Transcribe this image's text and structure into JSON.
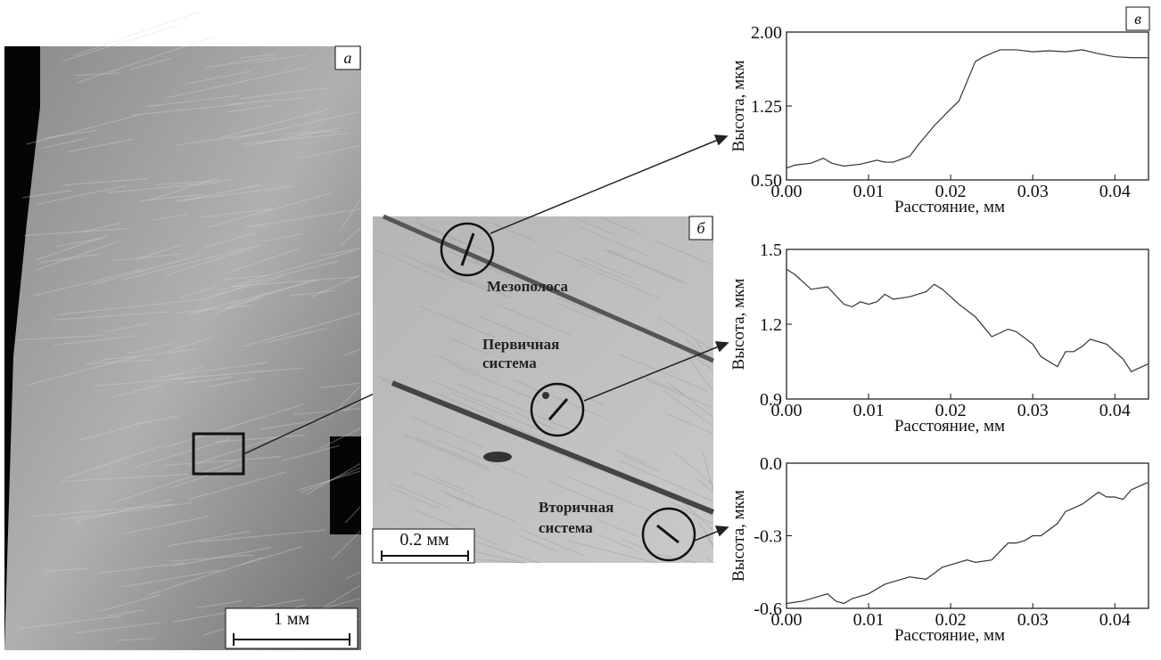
{
  "chart_data": [
    {
      "type": "line",
      "ylabel": "Высота, мкм",
      "xlabel": "Расстояние, мм",
      "xlim": [
        0,
        0.0441
      ],
      "xticks": [
        {
          "value": 0,
          "label": "0.00"
        },
        0.01,
        0.02,
        0.03,
        0.04
      ],
      "ylim": [
        0.5,
        2.0
      ],
      "yticks": [
        {
          "value": 0.5,
          "label": "0.50"
        },
        1.25,
        {
          "value": 2.0,
          "label": "2.00"
        }
      ],
      "x": [
        0,
        0.001,
        0.003,
        0.0045,
        0.0055,
        0.007,
        0.009,
        0.011,
        0.012,
        0.013,
        0.015,
        0.016,
        0.018,
        0.02,
        0.021,
        0.022,
        0.023,
        0.024,
        0.026,
        0.028,
        0.03,
        0.032,
        0.034,
        0.036,
        0.038,
        0.04,
        0.042,
        0.044
      ],
      "series": [
        {
          "color": "#333333",
          "values": [
            0.62,
            0.65,
            0.67,
            0.72,
            0.67,
            0.64,
            0.66,
            0.7,
            0.68,
            0.68,
            0.74,
            0.85,
            1.05,
            1.22,
            1.3,
            1.5,
            1.7,
            1.75,
            1.82,
            1.82,
            1.8,
            1.81,
            1.8,
            1.82,
            1.78,
            1.75,
            1.74,
            1.74
          ]
        }
      ]
    },
    {
      "type": "line",
      "ylabel": "Высота, мкм",
      "xlabel": "Расстояние, мм",
      "xlim": [
        0,
        0.0441
      ],
      "xticks": [
        {
          "value": 0,
          "label": "0.00"
        },
        0.01,
        0.02,
        0.03,
        0.04
      ],
      "ylim": [
        0.9,
        1.5
      ],
      "yticks": [
        0.9,
        1.2,
        1.5
      ],
      "x": [
        0,
        0.001,
        0.003,
        0.005,
        0.007,
        0.008,
        0.009,
        0.01,
        0.011,
        0.012,
        0.013,
        0.015,
        0.017,
        0.018,
        0.019,
        0.021,
        0.023,
        0.025,
        0.027,
        0.028,
        0.03,
        0.031,
        0.033,
        0.034,
        0.035,
        0.036,
        0.037,
        0.039,
        0.041,
        0.042,
        0.044
      ],
      "series": [
        {
          "color": "#333333",
          "values": [
            1.42,
            1.4,
            1.34,
            1.35,
            1.28,
            1.27,
            1.29,
            1.28,
            1.29,
            1.32,
            1.3,
            1.31,
            1.33,
            1.36,
            1.34,
            1.28,
            1.23,
            1.15,
            1.18,
            1.17,
            1.12,
            1.07,
            1.03,
            1.09,
            1.09,
            1.11,
            1.14,
            1.12,
            1.06,
            1.01,
            1.04
          ]
        }
      ]
    },
    {
      "type": "line",
      "ylabel": "Высота, мкм",
      "xlabel": "Расстояние, мм",
      "xlim": [
        0,
        0.0441
      ],
      "xticks": [
        {
          "value": 0,
          "label": "0.00"
        },
        0.01,
        0.02,
        0.03,
        0.04
      ],
      "ylim": [
        -0.6,
        0.0
      ],
      "yticks": [
        -0.6,
        -0.3,
        {
          "value": 0,
          "label": "0.0"
        }
      ],
      "x": [
        0,
        0.002,
        0.004,
        0.005,
        0.006,
        0.007,
        0.008,
        0.01,
        0.012,
        0.014,
        0.015,
        0.017,
        0.019,
        0.02,
        0.022,
        0.023,
        0.025,
        0.027,
        0.028,
        0.029,
        0.03,
        0.031,
        0.033,
        0.034,
        0.036,
        0.038,
        0.039,
        0.04,
        0.041,
        0.042,
        0.044
      ],
      "series": [
        {
          "color": "#333333",
          "values": [
            -0.58,
            -0.57,
            -0.55,
            -0.54,
            -0.57,
            -0.58,
            -0.56,
            -0.54,
            -0.5,
            -0.48,
            -0.47,
            -0.48,
            -0.43,
            -0.42,
            -0.4,
            -0.41,
            -0.4,
            -0.33,
            -0.33,
            -0.32,
            -0.3,
            -0.3,
            -0.25,
            -0.2,
            -0.17,
            -0.12,
            -0.14,
            -0.14,
            -0.15,
            -0.11,
            -0.08
          ]
        }
      ]
    }
  ],
  "panels": {
    "a": {
      "label": "а",
      "scale": "1 мм"
    },
    "b": {
      "label": "б",
      "scale": "0.2 мм",
      "annotations": [
        "Мезополоса",
        "Первичная",
        "система",
        "Вторичная",
        "система"
      ]
    },
    "c": {
      "label": "в"
    }
  }
}
